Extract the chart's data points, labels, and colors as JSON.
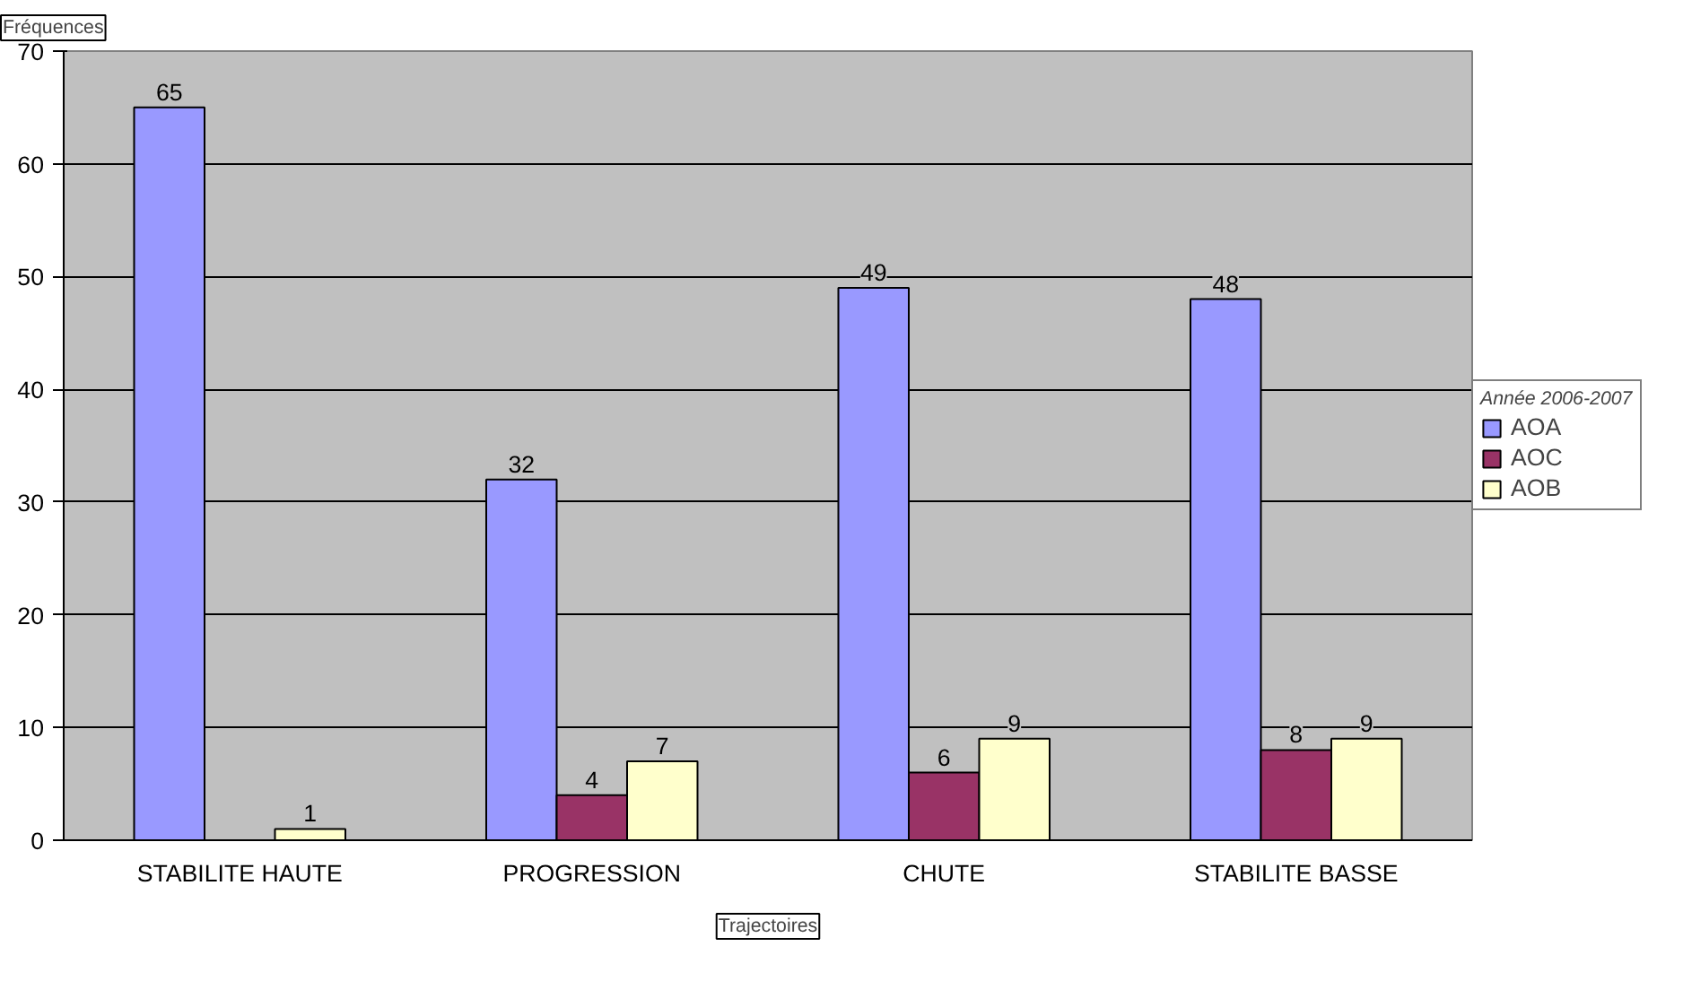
{
  "chart_data": {
    "type": "bar",
    "xlabel": "Trajectoires",
    "ylabel": "Fréquences",
    "legend_title": "Année 2006-2007",
    "categories": [
      "STABILITE HAUTE",
      "PROGRESSION",
      "CHUTE",
      "STABILITE BASSE"
    ],
    "series": [
      {
        "name": "AOA",
        "color": "#9999ff",
        "values": [
          65,
          32,
          49,
          48
        ]
      },
      {
        "name": "AOC",
        "color": "#993366",
        "values": [
          null,
          4,
          6,
          8
        ]
      },
      {
        "name": "AOB",
        "color": "#ffffcc",
        "values": [
          1,
          7,
          9,
          9
        ]
      }
    ],
    "ylim": [
      0,
      70
    ],
    "yticks": [
      0,
      10,
      20,
      30,
      40,
      50,
      60,
      70
    ],
    "grid": "y",
    "legend": "right",
    "data_labels": true
  }
}
